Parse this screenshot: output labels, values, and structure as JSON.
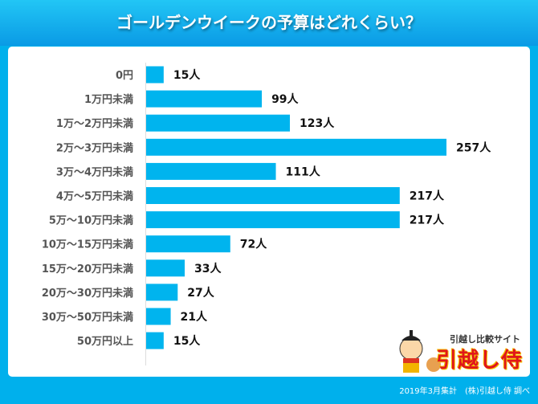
{
  "chart_data": {
    "type": "bar",
    "orientation": "horizontal",
    "title": "ゴールデンウイークの予算はどれくらい？",
    "categories": [
      "0円",
      "1万円未満",
      "1万～2万円未満",
      "2万～3万円未満",
      "3万～4万円未満",
      "4万～5万円未満",
      "5万～10万円未満",
      "10万～15万円未満",
      "15万～20万円未満",
      "20万～30万円未満",
      "30万～50万円未満",
      "50万円以上"
    ],
    "values": [
      15,
      99,
      123,
      257,
      111,
      217,
      217,
      72,
      33,
      27,
      21,
      15
    ],
    "value_suffix": "人",
    "xlim": [
      0,
      257
    ],
    "grid": false,
    "bar_color": "#00b4ee"
  },
  "logo": {
    "subtitle": "引越し比較サイト",
    "name": "引越し侍"
  },
  "footer": "2019年3月集計　(株)引越し侍 調べ"
}
